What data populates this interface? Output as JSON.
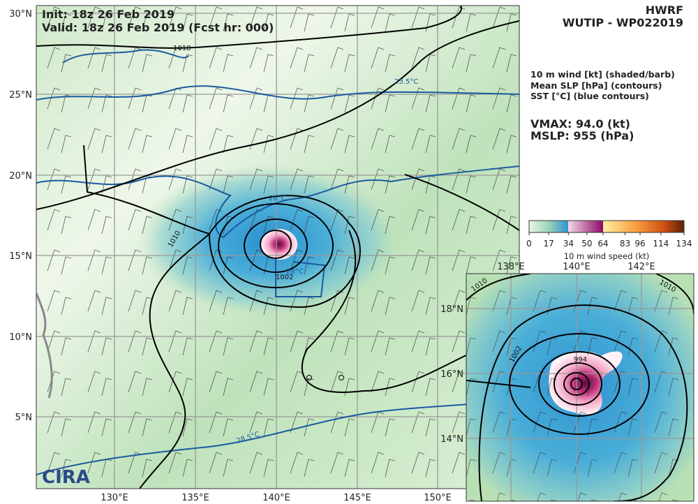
{
  "header": {
    "init": "Init:   18z 26 Feb 2019",
    "valid": "Valid: 18z 26 Feb 2019 (Fcst hr: 000)",
    "model": "HWRF",
    "storm": "WUTIP - WP022019"
  },
  "legend": {
    "lines": [
      "10 m wind [kt] (shaded/barb)",
      "Mean SLP [hPa] (contours)",
      "SST [°C] (blue contours)"
    ],
    "vmax": "VMAX:  94.0 (kt)",
    "mslp": "MSLP:  955 (hPa)"
  },
  "colorbar": {
    "ticks": [
      0,
      17,
      34,
      50,
      64,
      83,
      96,
      114,
      134
    ],
    "label": "10 m wind speed (kt)"
  },
  "main_map": {
    "lat_labels": [
      "30°N",
      "25°N",
      "20°N",
      "15°N",
      "10°N",
      "5°N"
    ],
    "lon_labels": [
      "130°E",
      "135°E",
      "140°E",
      "145°E",
      "150°E"
    ],
    "contour_labels": [
      "1018",
      "1010",
      "1002",
      "23.5°C",
      "26°C",
      "28°C",
      "28.5°C"
    ]
  },
  "inset": {
    "lon_labels": [
      "138°E",
      "140°E",
      "142°E"
    ],
    "lat_labels": [
      "18°N",
      "16°N",
      "14°N"
    ],
    "contour_labels": [
      "1010",
      "1010",
      "1002",
      "994"
    ]
  },
  "logo": "CIRA"
}
